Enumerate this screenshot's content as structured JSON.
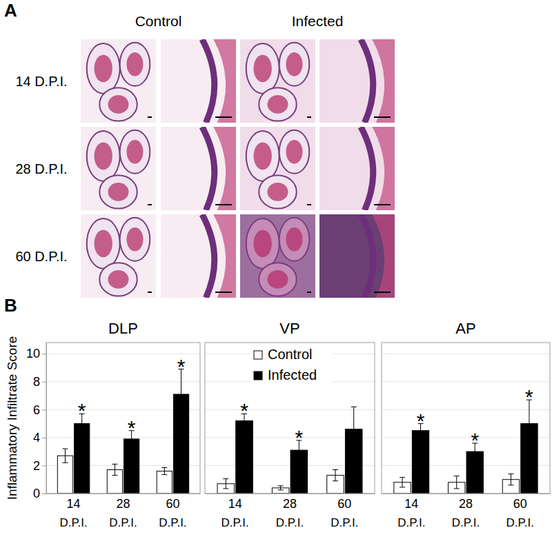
{
  "panel_labels": [
    "A",
    "B"
  ],
  "panel_a": {
    "columns": [
      "Control",
      "Infected"
    ],
    "rows": [
      "14 D.P.I.",
      "28 D.P.I.",
      "60 D.P.I."
    ]
  },
  "chart_data": [
    {
      "type": "bar",
      "title": "DLP",
      "categories": [
        "14",
        "28",
        "60"
      ],
      "x_label": "D.P.I.",
      "y_label": "Inflammatory Infiltrate Score",
      "ylim": [
        0,
        10.8
      ],
      "yticks": [
        0,
        2,
        4,
        6,
        8,
        10
      ],
      "grid": true,
      "series": [
        {
          "name": "Control",
          "color": "#ffffff",
          "values": [
            2.7,
            1.7,
            1.6
          ],
          "errors": [
            0.5,
            0.4,
            0.25
          ]
        },
        {
          "name": "Infected",
          "color": "#000000",
          "values": [
            5.0,
            3.9,
            7.1
          ],
          "errors": [
            0.7,
            0.6,
            1.8
          ],
          "significance": [
            "*",
            "*",
            "*"
          ]
        }
      ]
    },
    {
      "type": "bar",
      "title": "VP",
      "categories": [
        "14",
        "28",
        "60"
      ],
      "x_label": "D.P.I.",
      "ylim": [
        0,
        10.8
      ],
      "yticks": [
        0,
        2,
        4,
        6,
        8,
        10
      ],
      "grid": true,
      "tick_labels": "x",
      "legend": "top",
      "series": [
        {
          "name": "Control",
          "color": "#ffffff",
          "values": [
            0.7,
            0.4,
            1.3
          ],
          "errors": [
            0.35,
            0.15,
            0.4
          ]
        },
        {
          "name": "Infected",
          "color": "#000000",
          "values": [
            5.2,
            3.1,
            4.6
          ],
          "errors": [
            0.5,
            0.7,
            1.6
          ],
          "significance": [
            "*",
            "*",
            null
          ]
        }
      ]
    },
    {
      "type": "bar",
      "title": "AP",
      "categories": [
        "14",
        "28",
        "60"
      ],
      "x_label": "D.P.I.",
      "ylim": [
        0,
        10.8
      ],
      "yticks": [
        0,
        2,
        4,
        6,
        8,
        10
      ],
      "grid": true,
      "tick_labels": "x",
      "series": [
        {
          "name": "Control",
          "color": "#ffffff",
          "values": [
            0.8,
            0.8,
            1.0
          ],
          "errors": [
            0.35,
            0.45,
            0.4
          ]
        },
        {
          "name": "Infected",
          "color": "#000000",
          "values": [
            4.5,
            3.0,
            5.0
          ],
          "errors": [
            0.5,
            0.6,
            1.7
          ],
          "significance": [
            "*",
            "*",
            "*"
          ]
        }
      ]
    }
  ]
}
